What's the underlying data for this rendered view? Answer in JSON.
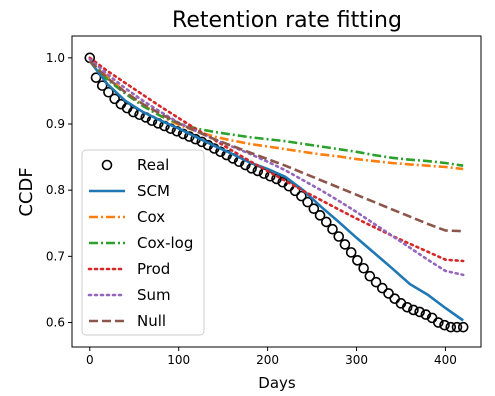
{
  "chart_data": {
    "type": "line",
    "title": "Retention rate fitting",
    "xlabel": "Days",
    "ylabel": "CCDF",
    "xlim": [
      -20,
      440
    ],
    "ylim": [
      0.563,
      1.033
    ],
    "xticks": [
      0,
      100,
      200,
      300,
      400
    ],
    "yticks": [
      0.6,
      0.7,
      0.8,
      0.9,
      1.0
    ],
    "xtick_labels": [
      "0",
      "100",
      "200",
      "300",
      "400"
    ],
    "ytick_labels": [
      "0.6",
      "0.7",
      "0.8",
      "0.9",
      "1.0"
    ],
    "grid": false,
    "legend_position": "lower-left",
    "series": [
      {
        "name": "Real",
        "style": "markers",
        "color": "#000000",
        "x": [
          0,
          7,
          14,
          21,
          28,
          35,
          42,
          49,
          56,
          63,
          70,
          77,
          84,
          91,
          98,
          105,
          112,
          119,
          126,
          133,
          140,
          147,
          154,
          161,
          168,
          175,
          182,
          189,
          196,
          203,
          210,
          217,
          224,
          231,
          238,
          245,
          252,
          259,
          266,
          273,
          280,
          287,
          294,
          301,
          308,
          315,
          322,
          329,
          336,
          343,
          350,
          357,
          364,
          371,
          378,
          385,
          392,
          399,
          406,
          413,
          420
        ],
        "y": [
          1.0,
          0.97,
          0.958,
          0.948,
          0.938,
          0.93,
          0.924,
          0.918,
          0.914,
          0.91,
          0.905,
          0.901,
          0.897,
          0.893,
          0.889,
          0.885,
          0.881,
          0.877,
          0.873,
          0.868,
          0.863,
          0.858,
          0.853,
          0.848,
          0.843,
          0.838,
          0.833,
          0.829,
          0.825,
          0.821,
          0.817,
          0.812,
          0.806,
          0.799,
          0.791,
          0.782,
          0.772,
          0.762,
          0.752,
          0.741,
          0.73,
          0.718,
          0.706,
          0.694,
          0.682,
          0.67,
          0.661,
          0.652,
          0.644,
          0.636,
          0.629,
          0.623,
          0.619,
          0.616,
          0.612,
          0.607,
          0.6,
          0.596,
          0.593,
          0.593,
          0.593
        ]
      },
      {
        "name": "SCM",
        "style": "solid",
        "color": "#1f77b4",
        "x": [
          0,
          20,
          40,
          60,
          80,
          100,
          120,
          140,
          160,
          180,
          200,
          220,
          240,
          260,
          280,
          300,
          320,
          340,
          360,
          380,
          400,
          420
        ],
        "y": [
          0.995,
          0.96,
          0.935,
          0.918,
          0.905,
          0.893,
          0.88,
          0.867,
          0.855,
          0.842,
          0.832,
          0.82,
          0.8,
          0.775,
          0.752,
          0.728,
          0.705,
          0.682,
          0.658,
          0.642,
          0.622,
          0.603
        ]
      },
      {
        "name": "Cox",
        "style": "dashdot",
        "color": "#ff7f0e",
        "x": [
          0,
          20,
          40,
          60,
          80,
          100,
          120,
          140,
          160,
          180,
          200,
          220,
          240,
          260,
          280,
          300,
          320,
          340,
          360,
          380,
          400,
          420
        ],
        "y": [
          0.995,
          0.971,
          0.948,
          0.929,
          0.912,
          0.899,
          0.889,
          0.881,
          0.875,
          0.87,
          0.866,
          0.862,
          0.858,
          0.854,
          0.851,
          0.847,
          0.844,
          0.841,
          0.839,
          0.837,
          0.835,
          0.832
        ]
      },
      {
        "name": "Cox-log",
        "style": "dashdot",
        "color": "#2ca02c",
        "x": [
          0,
          20,
          40,
          60,
          80,
          100,
          120,
          140,
          160,
          180,
          200,
          220,
          240,
          260,
          280,
          300,
          320,
          340,
          360,
          380,
          400,
          420
        ],
        "y": [
          0.995,
          0.967,
          0.946,
          0.927,
          0.912,
          0.901,
          0.893,
          0.888,
          0.884,
          0.88,
          0.877,
          0.874,
          0.87,
          0.866,
          0.862,
          0.858,
          0.853,
          0.849,
          0.846,
          0.844,
          0.841,
          0.837
        ]
      },
      {
        "name": "Prod",
        "style": "dotted",
        "color": "#d62728",
        "x": [
          0,
          20,
          40,
          60,
          80,
          100,
          120,
          140,
          160,
          180,
          200,
          220,
          240,
          260,
          280,
          300,
          320,
          340,
          360,
          380,
          400,
          420
        ],
        "y": [
          1.0,
          0.98,
          0.962,
          0.944,
          0.926,
          0.909,
          0.892,
          0.876,
          0.86,
          0.844,
          0.829,
          0.814,
          0.799,
          0.785,
          0.771,
          0.757,
          0.744,
          0.731,
          0.719,
          0.707,
          0.695,
          0.693
        ]
      },
      {
        "name": "Sum",
        "style": "dotted",
        "color": "#9467bd",
        "x": [
          0,
          20,
          40,
          60,
          80,
          100,
          120,
          140,
          160,
          180,
          200,
          220,
          240,
          260,
          280,
          300,
          320,
          340,
          360,
          380,
          400,
          420
        ],
        "y": [
          0.998,
          0.975,
          0.954,
          0.935,
          0.918,
          0.902,
          0.889,
          0.877,
          0.866,
          0.855,
          0.843,
          0.83,
          0.815,
          0.8,
          0.784,
          0.767,
          0.749,
          0.731,
          0.713,
          0.695,
          0.678,
          0.672
        ]
      },
      {
        "name": "Null",
        "style": "dashed",
        "color": "#8c564b",
        "x": [
          0,
          20,
          40,
          60,
          80,
          100,
          120,
          140,
          160,
          180,
          200,
          220,
          240,
          260,
          280,
          300,
          320,
          340,
          360,
          380,
          400,
          420
        ],
        "y": [
          0.995,
          0.969,
          0.948,
          0.93,
          0.915,
          0.901,
          0.889,
          0.877,
          0.867,
          0.857,
          0.847,
          0.837,
          0.826,
          0.815,
          0.804,
          0.793,
          0.782,
          0.771,
          0.76,
          0.749,
          0.739,
          0.738
        ]
      }
    ]
  }
}
